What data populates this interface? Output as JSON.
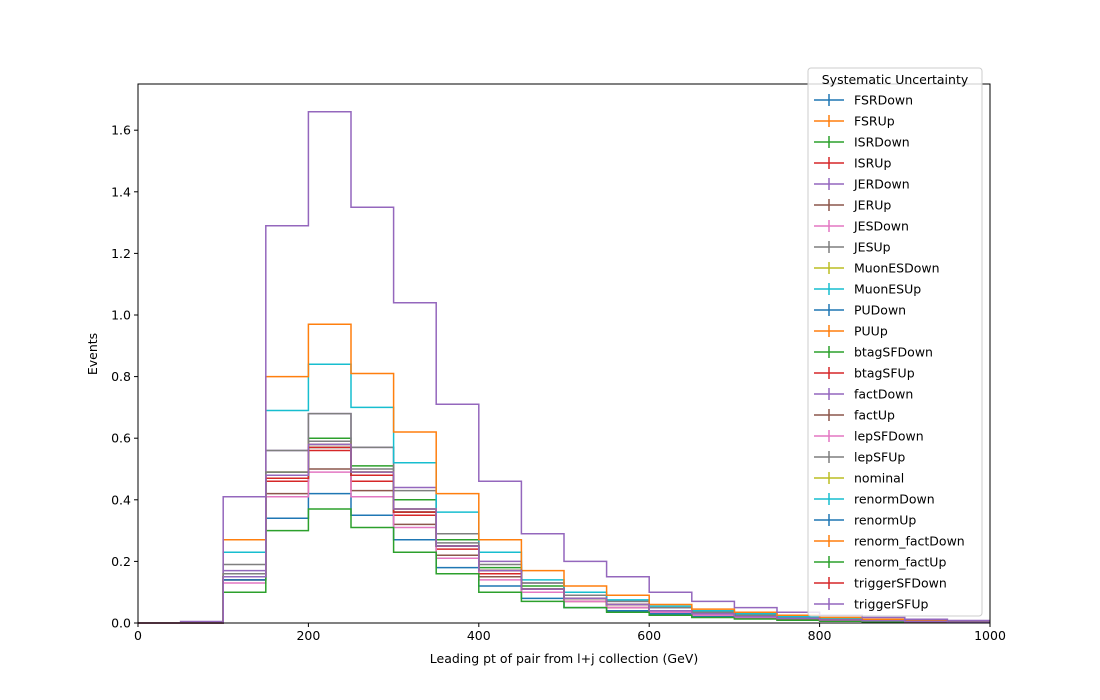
{
  "chart_data": {
    "type": "line",
    "xlabel": "Leading pt of pair from l+j collection (GeV)",
    "ylabel": "Events",
    "xlim": [
      0,
      1000
    ],
    "ylim": [
      0,
      1.75
    ],
    "x_ticks": [
      "0",
      "200",
      "400",
      "600",
      "800",
      "1000"
    ],
    "y_ticks": [
      "0.0",
      "0.2",
      "0.4",
      "0.6",
      "0.8",
      "1.0",
      "1.2",
      "1.4",
      "1.6"
    ],
    "grid": false,
    "legend": {
      "title": "Systematic Uncertainty",
      "placement": "top-right"
    },
    "bin_edges": [
      0,
      50,
      100,
      150,
      200,
      250,
      300,
      350,
      400,
      450,
      500,
      550,
      600,
      650,
      700,
      750,
      800,
      850,
      900,
      950,
      1000
    ],
    "series": [
      {
        "name": "FSRDown",
        "color": "#1f77b4",
        "values": [
          0,
          0,
          0.14,
          0.34,
          0.42,
          0.35,
          0.27,
          0.18,
          0.12,
          0.08,
          0.05,
          0.04,
          0.03,
          0.02,
          0.015,
          0.01,
          0.008,
          0.005,
          0.003,
          0.002
        ]
      },
      {
        "name": "FSRUp",
        "color": "#ff7f0e",
        "values": [
          0,
          0,
          0.16,
          0.49,
          0.59,
          0.49,
          0.37,
          0.25,
          0.17,
          0.11,
          0.08,
          0.06,
          0.04,
          0.03,
          0.02,
          0.015,
          0.01,
          0.007,
          0.005,
          0.003
        ]
      },
      {
        "name": "ISRDown",
        "color": "#2ca02c",
        "values": [
          0,
          0,
          0.15,
          0.49,
          0.6,
          0.51,
          0.4,
          0.27,
          0.18,
          0.12,
          0.08,
          0.06,
          0.04,
          0.03,
          0.02,
          0.015,
          0.01,
          0.007,
          0.005,
          0.003
        ]
      },
      {
        "name": "ISRUp",
        "color": "#d62728",
        "values": [
          0,
          0,
          0.14,
          0.46,
          0.56,
          0.46,
          0.35,
          0.24,
          0.16,
          0.11,
          0.07,
          0.05,
          0.035,
          0.025,
          0.018,
          0.012,
          0.009,
          0.006,
          0.004,
          0.003
        ]
      },
      {
        "name": "JERDown",
        "color": "#9467bd",
        "values": [
          0,
          0,
          0.17,
          0.56,
          0.68,
          0.57,
          0.44,
          0.29,
          0.2,
          0.13,
          0.09,
          0.07,
          0.05,
          0.035,
          0.025,
          0.018,
          0.012,
          0.008,
          0.005,
          0.003
        ]
      },
      {
        "name": "JERUp",
        "color": "#8c564b",
        "values": [
          0,
          0,
          0.14,
          0.42,
          0.5,
          0.43,
          0.32,
          0.22,
          0.15,
          0.1,
          0.07,
          0.05,
          0.035,
          0.025,
          0.018,
          0.012,
          0.009,
          0.006,
          0.004,
          0.003
        ]
      },
      {
        "name": "JESDown",
        "color": "#e377c2",
        "values": [
          0,
          0,
          0.13,
          0.41,
          0.49,
          0.41,
          0.31,
          0.21,
          0.14,
          0.1,
          0.07,
          0.05,
          0.035,
          0.025,
          0.018,
          0.012,
          0.009,
          0.006,
          0.004,
          0.003
        ]
      },
      {
        "name": "JESUp",
        "color": "#7f7f7f",
        "values": [
          0,
          0,
          0.19,
          0.56,
          0.68,
          0.57,
          0.43,
          0.29,
          0.19,
          0.13,
          0.09,
          0.07,
          0.05,
          0.035,
          0.025,
          0.018,
          0.012,
          0.008,
          0.005,
          0.003
        ]
      },
      {
        "name": "MuonESDown",
        "color": "#bcbd22",
        "values": [
          0,
          0,
          0.15,
          0.48,
          0.59,
          0.49,
          0.37,
          0.25,
          0.17,
          0.11,
          0.08,
          0.06,
          0.04,
          0.03,
          0.02,
          0.015,
          0.01,
          0.007,
          0.005,
          0.003
        ]
      },
      {
        "name": "MuonESUp",
        "color": "#17becf",
        "values": [
          0,
          0,
          0.23,
          0.69,
          0.84,
          0.7,
          0.52,
          0.36,
          0.23,
          0.14,
          0.1,
          0.075,
          0.055,
          0.04,
          0.03,
          0.02,
          0.015,
          0.01,
          0.007,
          0.004
        ]
      },
      {
        "name": "PUDown",
        "color": "#1f77b4",
        "values": [
          0,
          0,
          0.14,
          0.48,
          0.58,
          0.48,
          0.36,
          0.25,
          0.17,
          0.11,
          0.08,
          0.06,
          0.04,
          0.03,
          0.02,
          0.015,
          0.01,
          0.007,
          0.005,
          0.003
        ]
      },
      {
        "name": "PUUp",
        "color": "#ff7f0e",
        "values": [
          0,
          0,
          0.27,
          0.8,
          0.97,
          0.81,
          0.62,
          0.42,
          0.27,
          0.17,
          0.12,
          0.09,
          0.06,
          0.045,
          0.035,
          0.025,
          0.018,
          0.012,
          0.008,
          0.005
        ]
      },
      {
        "name": "btagSFDown",
        "color": "#2ca02c",
        "values": [
          0,
          0,
          0.1,
          0.3,
          0.37,
          0.31,
          0.23,
          0.16,
          0.1,
          0.07,
          0.05,
          0.035,
          0.025,
          0.018,
          0.013,
          0.009,
          0.006,
          0.004,
          0.003,
          0.002
        ]
      },
      {
        "name": "btagSFUp",
        "color": "#d62728",
        "values": [
          0,
          0,
          0.16,
          0.47,
          0.57,
          0.48,
          0.36,
          0.25,
          0.17,
          0.11,
          0.08,
          0.06,
          0.04,
          0.03,
          0.02,
          0.015,
          0.01,
          0.007,
          0.005,
          0.003
        ]
      },
      {
        "name": "factDown",
        "color": "#9467bd",
        "values": [
          0,
          0.005,
          0.41,
          1.29,
          1.66,
          1.35,
          1.04,
          0.71,
          0.46,
          0.29,
          0.2,
          0.15,
          0.1,
          0.07,
          0.05,
          0.035,
          0.025,
          0.018,
          0.012,
          0.008
        ]
      },
      {
        "name": "factUp",
        "color": "#8c564b",
        "values": [
          0,
          0,
          0.15,
          0.48,
          0.58,
          0.49,
          0.37,
          0.25,
          0.17,
          0.11,
          0.08,
          0.06,
          0.04,
          0.03,
          0.02,
          0.015,
          0.01,
          0.007,
          0.005,
          0.003
        ]
      },
      {
        "name": "lepSFDown",
        "color": "#e377c2",
        "values": [
          0,
          0,
          0.15,
          0.47,
          0.58,
          0.48,
          0.36,
          0.25,
          0.17,
          0.11,
          0.08,
          0.06,
          0.04,
          0.03,
          0.02,
          0.015,
          0.01,
          0.007,
          0.005,
          0.003
        ]
      },
      {
        "name": "lepSFUp",
        "color": "#7f7f7f",
        "values": [
          0,
          0,
          0.16,
          0.49,
          0.59,
          0.5,
          0.37,
          0.26,
          0.17,
          0.11,
          0.08,
          0.06,
          0.04,
          0.03,
          0.02,
          0.015,
          0.01,
          0.007,
          0.005,
          0.003
        ]
      },
      {
        "name": "nominal",
        "color": "#bcbd22",
        "values": [
          0,
          0,
          0.15,
          0.48,
          0.58,
          0.49,
          0.37,
          0.25,
          0.17,
          0.11,
          0.08,
          0.06,
          0.04,
          0.03,
          0.02,
          0.015,
          0.01,
          0.007,
          0.005,
          0.003
        ]
      },
      {
        "name": "renormDown",
        "color": "#17becf",
        "values": [
          0,
          0,
          0.15,
          0.48,
          0.58,
          0.49,
          0.37,
          0.25,
          0.17,
          0.11,
          0.08,
          0.06,
          0.04,
          0.03,
          0.02,
          0.015,
          0.01,
          0.007,
          0.005,
          0.003
        ]
      },
      {
        "name": "renormUp",
        "color": "#1f77b4",
        "values": [
          0,
          0,
          0.15,
          0.47,
          0.57,
          0.48,
          0.36,
          0.25,
          0.17,
          0.11,
          0.08,
          0.06,
          0.04,
          0.03,
          0.02,
          0.015,
          0.01,
          0.007,
          0.005,
          0.003
        ]
      },
      {
        "name": "renorm_factDown",
        "color": "#ff7f0e",
        "values": [
          0,
          0,
          0.15,
          0.48,
          0.58,
          0.49,
          0.37,
          0.25,
          0.17,
          0.11,
          0.08,
          0.06,
          0.04,
          0.03,
          0.02,
          0.015,
          0.01,
          0.007,
          0.005,
          0.003
        ]
      },
      {
        "name": "renorm_factUp",
        "color": "#2ca02c",
        "values": [
          0,
          0,
          0.15,
          0.47,
          0.57,
          0.48,
          0.36,
          0.25,
          0.17,
          0.11,
          0.08,
          0.06,
          0.04,
          0.03,
          0.02,
          0.015,
          0.01,
          0.007,
          0.005,
          0.003
        ]
      },
      {
        "name": "triggerSFDown",
        "color": "#d62728",
        "values": [
          0,
          0,
          0.15,
          0.47,
          0.57,
          0.48,
          0.36,
          0.25,
          0.17,
          0.11,
          0.08,
          0.06,
          0.04,
          0.03,
          0.02,
          0.015,
          0.01,
          0.007,
          0.005,
          0.003
        ]
      },
      {
        "name": "triggerSFUp",
        "color": "#9467bd",
        "values": [
          0,
          0,
          0.15,
          0.48,
          0.58,
          0.49,
          0.37,
          0.25,
          0.17,
          0.11,
          0.08,
          0.06,
          0.04,
          0.03,
          0.02,
          0.015,
          0.01,
          0.007,
          0.005,
          0.003
        ]
      }
    ]
  }
}
